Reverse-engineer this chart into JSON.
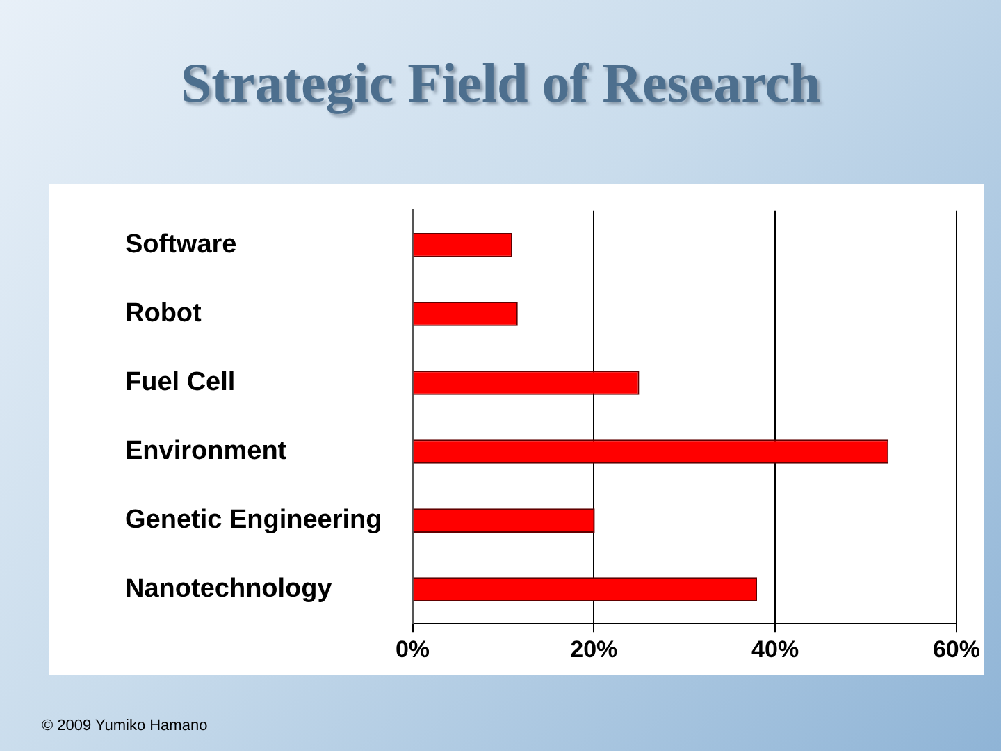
{
  "chart_data": {
    "type": "bar",
    "orientation": "horizontal",
    "title": "Strategic Field of Research",
    "categories": [
      "Software",
      "Robot",
      "Fuel Cell",
      "Environment",
      "Genetic Engineering",
      "Nanotechnology"
    ],
    "values": [
      11,
      11.6,
      25,
      52.5,
      20.1,
      38
    ],
    "color": "#ff0000",
    "xlim": [
      0,
      60
    ],
    "xticks": [
      {
        "value": 0,
        "label": "0%"
      },
      {
        "value": 20,
        "label": "20%"
      },
      {
        "value": 40,
        "label": "40%"
      },
      {
        "value": 60,
        "label": "60%"
      }
    ],
    "grid": "x",
    "legend": false,
    "annotations": [
      "© 2009 Yumiko Hamano"
    ]
  }
}
